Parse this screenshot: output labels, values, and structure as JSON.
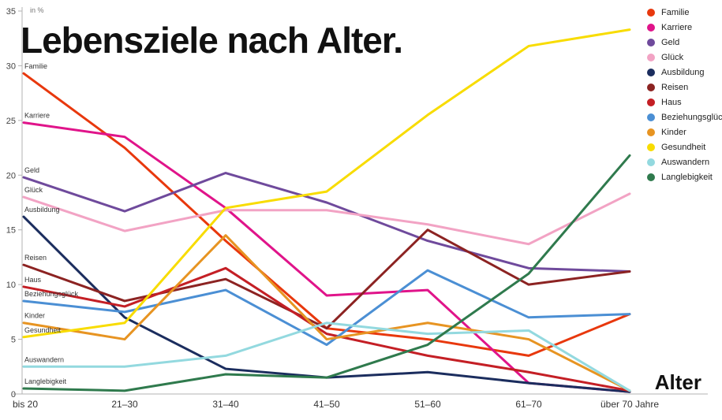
{
  "title": "Lebensziele nach Alter.",
  "chart_data": {
    "type": "line",
    "title": "Lebensziele nach Alter.",
    "unit_label": "in %",
    "xlabel": "Alter",
    "ylabel": "",
    "ylim": [
      0,
      35
    ],
    "yticks": [
      0,
      5,
      10,
      15,
      20,
      25,
      30,
      35
    ],
    "grid": false,
    "legend_position": "top-right",
    "categories": [
      "bis 20",
      "21–30",
      "31–40",
      "41–50",
      "51–60",
      "61–70",
      "über 70 Jahre"
    ],
    "series": [
      {
        "name": "Familie",
        "color": "#e8380d",
        "values": [
          29.3,
          22.5,
          14.0,
          6.0,
          5.0,
          3.5,
          7.3
        ]
      },
      {
        "name": "Karriere",
        "color": "#e0148a",
        "values": [
          24.8,
          23.5,
          17.0,
          9.0,
          9.5,
          1.0,
          0.2
        ]
      },
      {
        "name": "Geld",
        "color": "#6f4a9c",
        "values": [
          19.8,
          16.7,
          20.2,
          17.5,
          14.0,
          11.5,
          11.2
        ]
      },
      {
        "name": "Glück",
        "color": "#f2a3c4",
        "values": [
          18.0,
          14.9,
          16.8,
          16.8,
          15.5,
          13.7,
          18.3
        ]
      },
      {
        "name": "Ausbildung",
        "color": "#1b2d5e",
        "values": [
          16.2,
          7.0,
          2.3,
          1.5,
          2.0,
          1.0,
          0.2
        ]
      },
      {
        "name": "Reisen",
        "color": "#8c2322",
        "values": [
          11.8,
          8.5,
          10.5,
          6.0,
          15.0,
          10.0,
          11.2
        ]
      },
      {
        "name": "Haus",
        "color": "#c41f25",
        "values": [
          9.8,
          8.0,
          11.5,
          5.5,
          3.5,
          2.0,
          0.3
        ]
      },
      {
        "name": "Beziehungsglück",
        "color": "#4b8fd4",
        "values": [
          8.5,
          7.5,
          9.5,
          4.5,
          11.3,
          7.0,
          7.3
        ]
      },
      {
        "name": "Kinder",
        "color": "#e79422",
        "values": [
          6.5,
          5.0,
          14.5,
          5.0,
          6.5,
          5.0,
          0.3
        ]
      },
      {
        "name": "Gesundheit",
        "color": "#f8dc00",
        "values": [
          5.2,
          6.5,
          17.0,
          18.5,
          25.5,
          31.8,
          33.3
        ]
      },
      {
        "name": "Auswandern",
        "color": "#93d9df",
        "values": [
          2.5,
          2.5,
          3.5,
          6.5,
          5.5,
          5.8,
          0.3
        ]
      },
      {
        "name": "Langlebigkeit",
        "color": "#2f7a4d",
        "values": [
          0.5,
          0.3,
          1.8,
          1.5,
          4.5,
          11.0,
          21.8
        ]
      }
    ]
  }
}
